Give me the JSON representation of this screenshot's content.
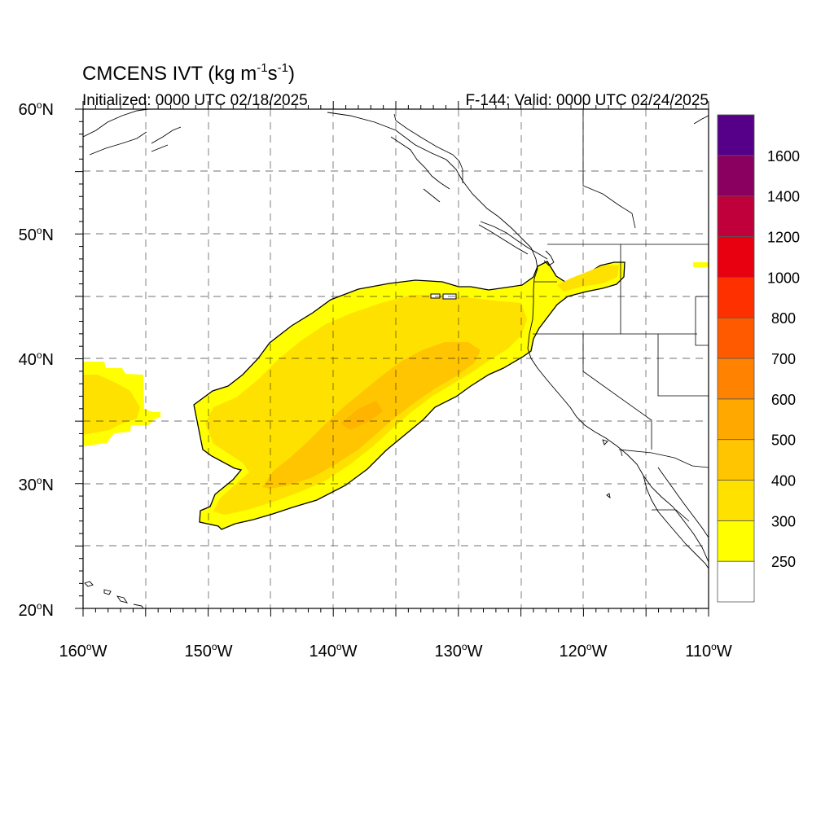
{
  "title": {
    "main": "CMCENS IVT (kg m",
    "exp1": "-1",
    "mid": "s",
    "exp2": "-1",
    "close": ")"
  },
  "subtitle_left": "Initialized: 0000 UTC 02/18/2025",
  "subtitle_right": "F-144: Valid: 0000 UTC 02/24/2025",
  "lat_labels": [
    {
      "deg": "60",
      "hem": "N"
    },
    {
      "deg": "50",
      "hem": "N"
    },
    {
      "deg": "40",
      "hem": "N"
    },
    {
      "deg": "30",
      "hem": "N"
    },
    {
      "deg": "20",
      "hem": "N"
    }
  ],
  "lon_labels": [
    {
      "deg": "160",
      "hem": "W"
    },
    {
      "deg": "150",
      "hem": "W"
    },
    {
      "deg": "140",
      "hem": "W"
    },
    {
      "deg": "130",
      "hem": "W"
    },
    {
      "deg": "120",
      "hem": "W"
    },
    {
      "deg": "110",
      "hem": "W"
    }
  ],
  "map_extent": {
    "lon": [
      -160,
      -110
    ],
    "lat": [
      20,
      60
    ]
  },
  "colorbar": {
    "levels": [
      "250",
      "300",
      "400",
      "500",
      "600",
      "700",
      "800",
      "1000",
      "1200",
      "1400",
      "1600"
    ],
    "colors": [
      "#ffffff",
      "#ffff00",
      "#ffe100",
      "#ffc500",
      "#ffa800",
      "#ff8200",
      "#ff5a00",
      "#ff3000",
      "#e80010",
      "#c0003a",
      "#8a0060",
      "#56008a"
    ]
  },
  "ivt_field": {
    "base_color": "#ffff00",
    "moderate_color": "#ffe100",
    "core_color": "#ffc500",
    "features": [
      "main atmospheric river plume",
      "small plume near 35N 158W",
      "inland extension into Oregon/Idaho"
    ]
  }
}
